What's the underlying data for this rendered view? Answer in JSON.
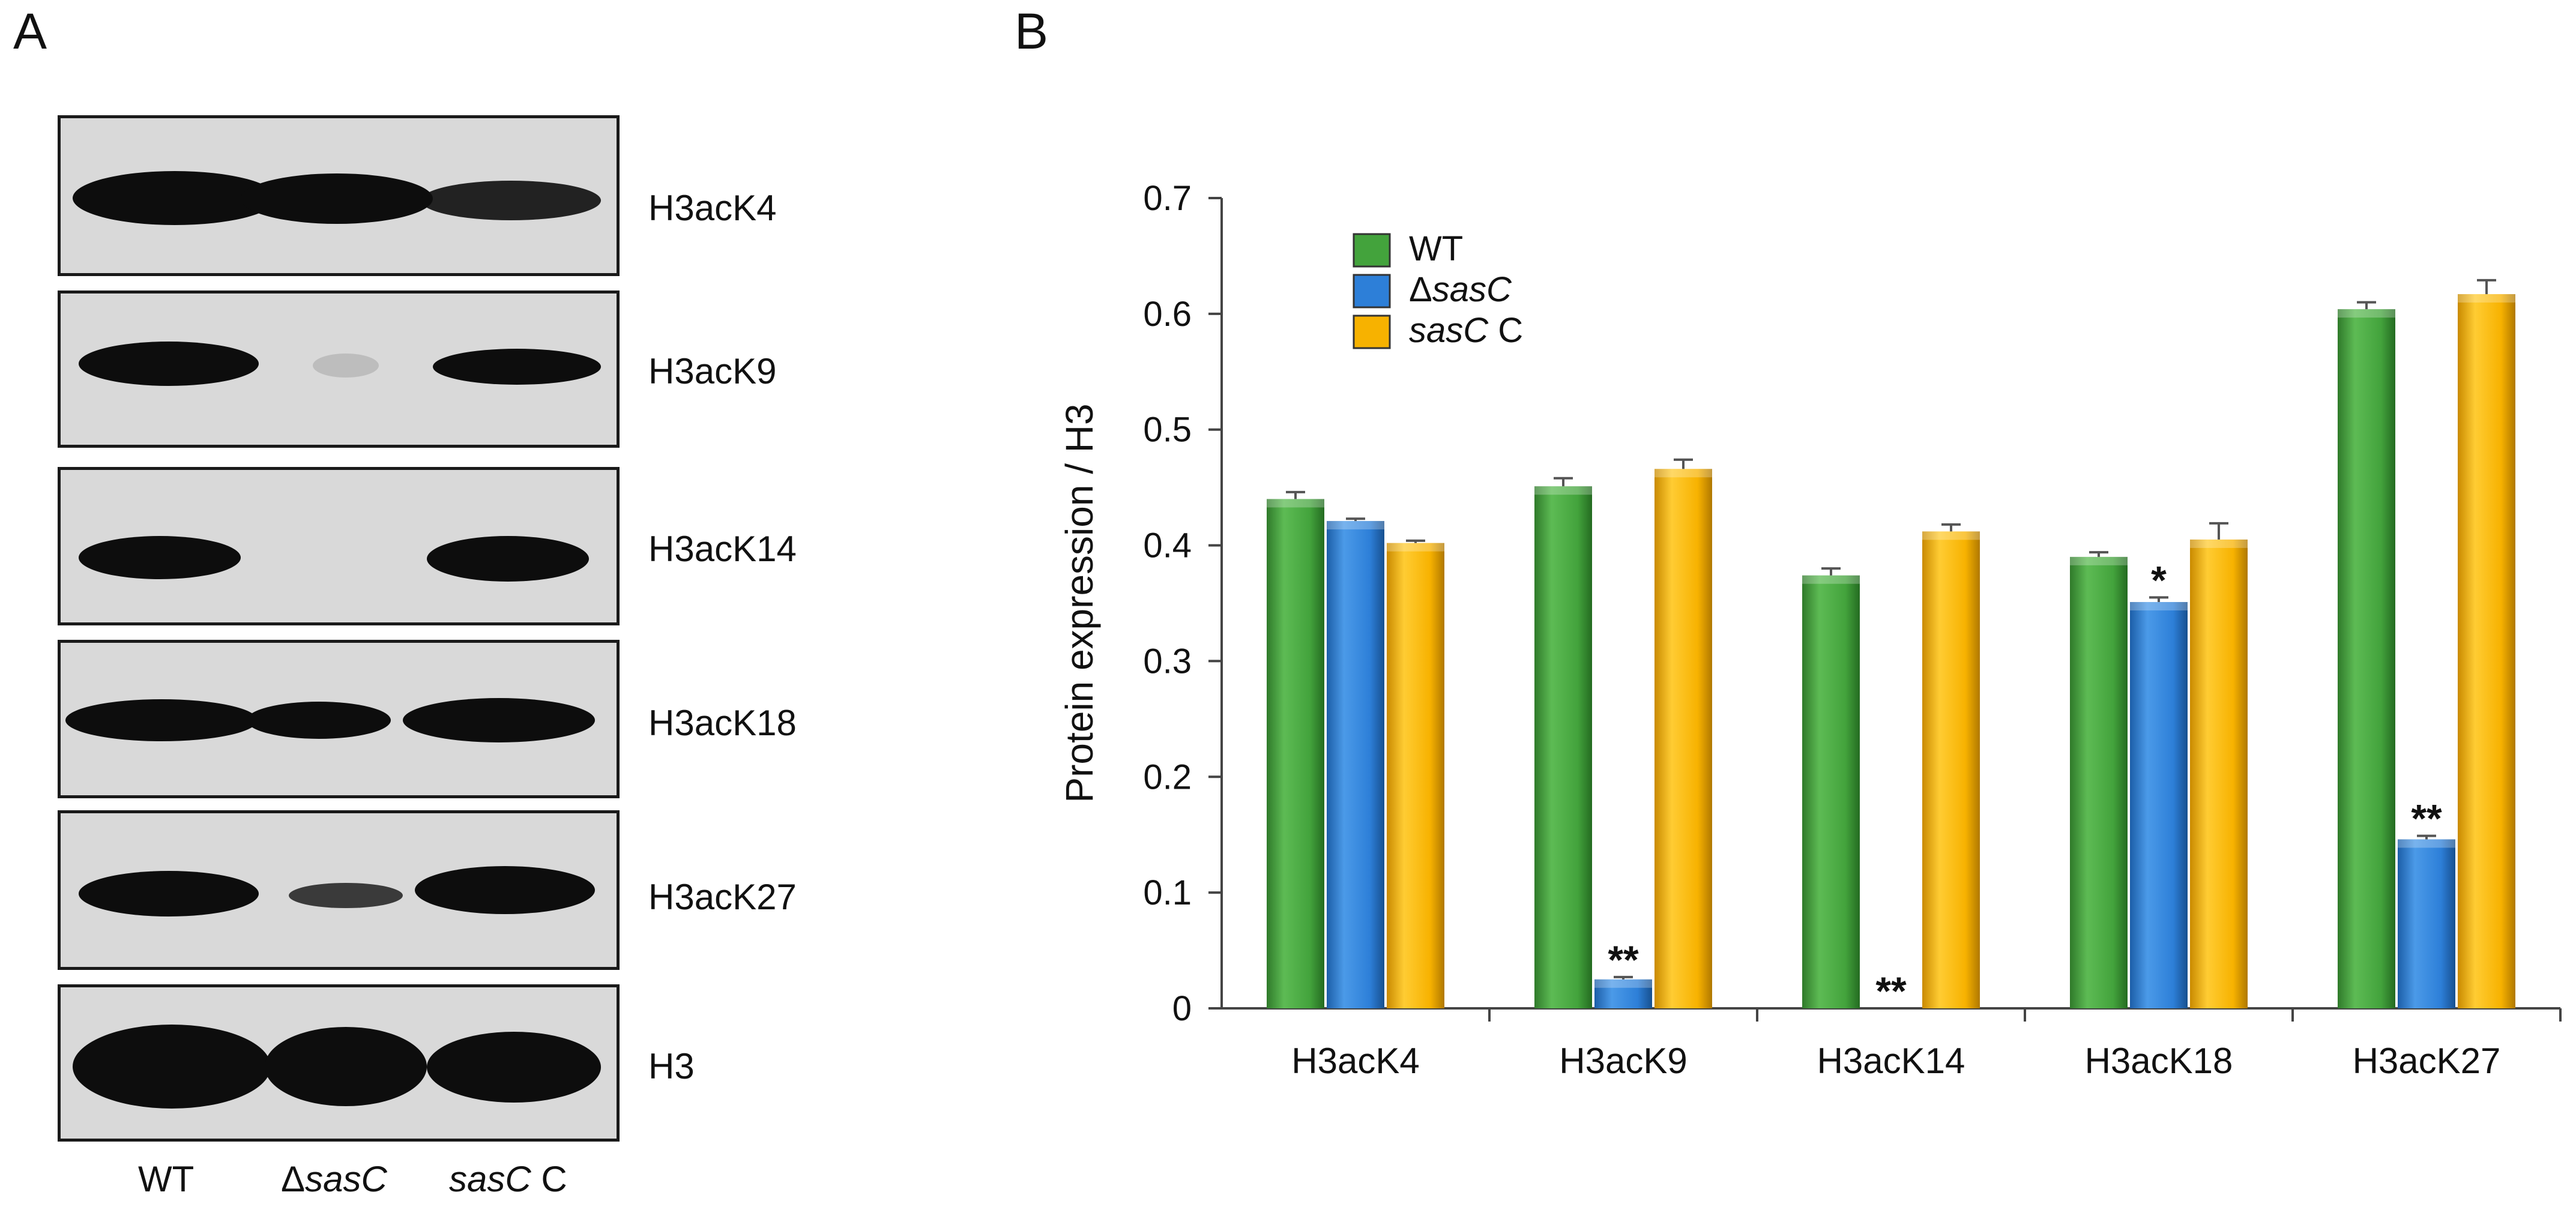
{
  "panel_a": {
    "letter": "A",
    "rows": [
      "H3acK4",
      "H3acK9",
      "H3acK14",
      "H3acK18",
      "H3acK27",
      "H3"
    ],
    "lanes": [
      {
        "name": "WT",
        "name_italic": "",
        "name_suffix": ""
      },
      {
        "name": "Δ",
        "name_italic": "sasC",
        "name_suffix": ""
      },
      {
        "name": "",
        "name_italic": "sasC",
        "name_suffix": " C"
      }
    ]
  },
  "panel_b": {
    "letter": "B"
  },
  "chart_data": {
    "type": "bar",
    "categories": [
      "H3acK4",
      "H3acK9",
      "H3acK14",
      "H3acK18",
      "H3acK27"
    ],
    "series": [
      {
        "name": "WT",
        "color": "#43a33c",
        "values": [
          0.44,
          0.451,
          0.374,
          0.39,
          0.604
        ],
        "errors": [
          0.006,
          0.007,
          0.006,
          0.004,
          0.006
        ],
        "stars": [
          "",
          "",
          "",
          "",
          ""
        ]
      },
      {
        "name": "ΔsasC",
        "color": "#2d7fd8",
        "values": [
          0.421,
          0.025,
          0.0,
          0.351,
          0.146
        ],
        "errors": [
          0.002,
          0.002,
          0.0,
          0.004,
          0.003
        ],
        "stars": [
          "",
          "**",
          "**",
          "*",
          "**"
        ]
      },
      {
        "name": "sasC C",
        "color": "#f7b200",
        "values": [
          0.402,
          0.466,
          0.412,
          0.405,
          0.617
        ],
        "errors": [
          0.002,
          0.008,
          0.006,
          0.014,
          0.012
        ],
        "stars": [
          "",
          "",
          "",
          "",
          ""
        ]
      }
    ],
    "legend": [
      {
        "prefix": "",
        "italic": "",
        "text": "WT"
      },
      {
        "prefix": "Δ",
        "italic": "sasC",
        "text": ""
      },
      {
        "prefix": "",
        "italic": "sasC",
        "text": " C"
      }
    ],
    "ylabel": "Protein expression / H3",
    "ylim": [
      0,
      0.7
    ],
    "yticks": [
      0,
      0.1,
      0.2,
      0.3,
      0.4,
      0.5,
      0.6,
      0.7
    ],
    "ytick_labels": [
      "0",
      "0.1",
      "0.2",
      "0.3",
      "0.4",
      "0.5",
      "0.6",
      "0.7"
    ],
    "legend_position": "top-left"
  }
}
